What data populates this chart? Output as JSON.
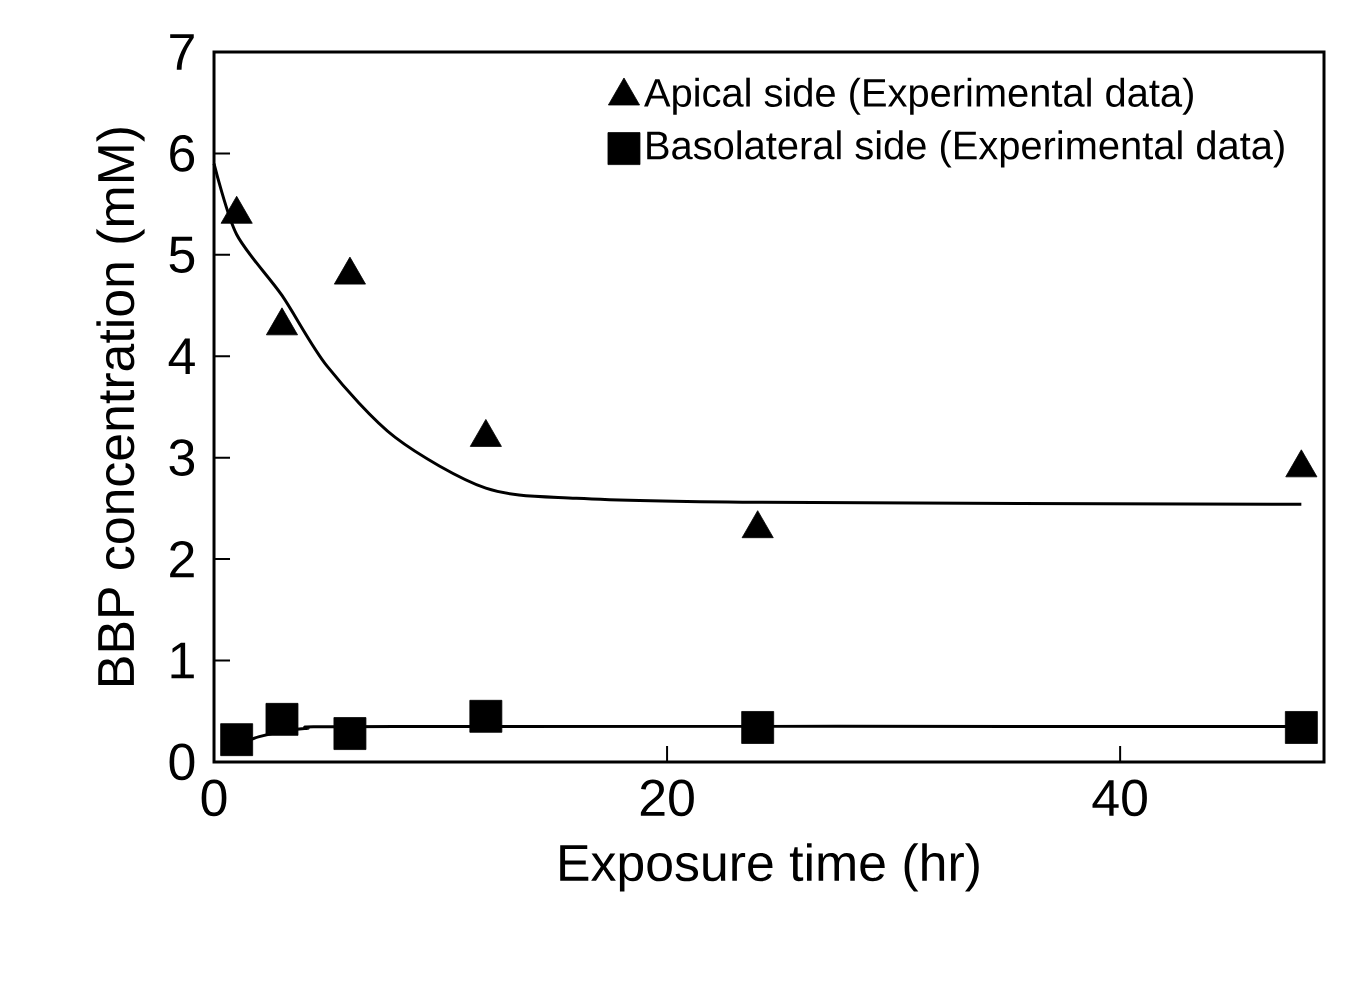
{
  "chart_data": {
    "type": "scatter",
    "xlabel": "Exposure time (hr)",
    "ylabel": "BBP concentration (mM)",
    "xlim": [
      0,
      49
    ],
    "ylim": [
      0,
      7
    ],
    "xticks": [
      0,
      20,
      40
    ],
    "yticks": [
      0,
      1,
      2,
      3,
      4,
      5,
      6,
      7
    ],
    "legend": "top right",
    "series": [
      {
        "name": "Apical side (Experimental data)",
        "color": "#000000",
        "marker": "triangle",
        "x": [
          1,
          3,
          6,
          12,
          24,
          48
        ],
        "values": [
          5.4,
          4.3,
          4.8,
          3.2,
          2.3,
          2.9
        ]
      },
      {
        "name": "Basolateral side (Experimental data)",
        "color": "#000000",
        "marker": "square",
        "x": [
          1,
          3,
          6,
          12,
          24,
          48
        ],
        "values": [
          0.22,
          0.42,
          0.28,
          0.45,
          0.34,
          0.34
        ]
      },
      {
        "type": "line",
        "color": "#000000",
        "marker": "none",
        "x": [
          0,
          1,
          3,
          5,
          8,
          12,
          16,
          24,
          48
        ],
        "values": [
          5.9,
          5.2,
          4.6,
          3.9,
          3.2,
          2.7,
          2.6,
          2.56,
          2.54
        ]
      },
      {
        "type": "line",
        "color": "#000000",
        "marker": "none",
        "x": [
          1,
          2,
          4,
          8,
          48
        ],
        "values": [
          0.15,
          0.25,
          0.33,
          0.35,
          0.35
        ]
      }
    ]
  }
}
